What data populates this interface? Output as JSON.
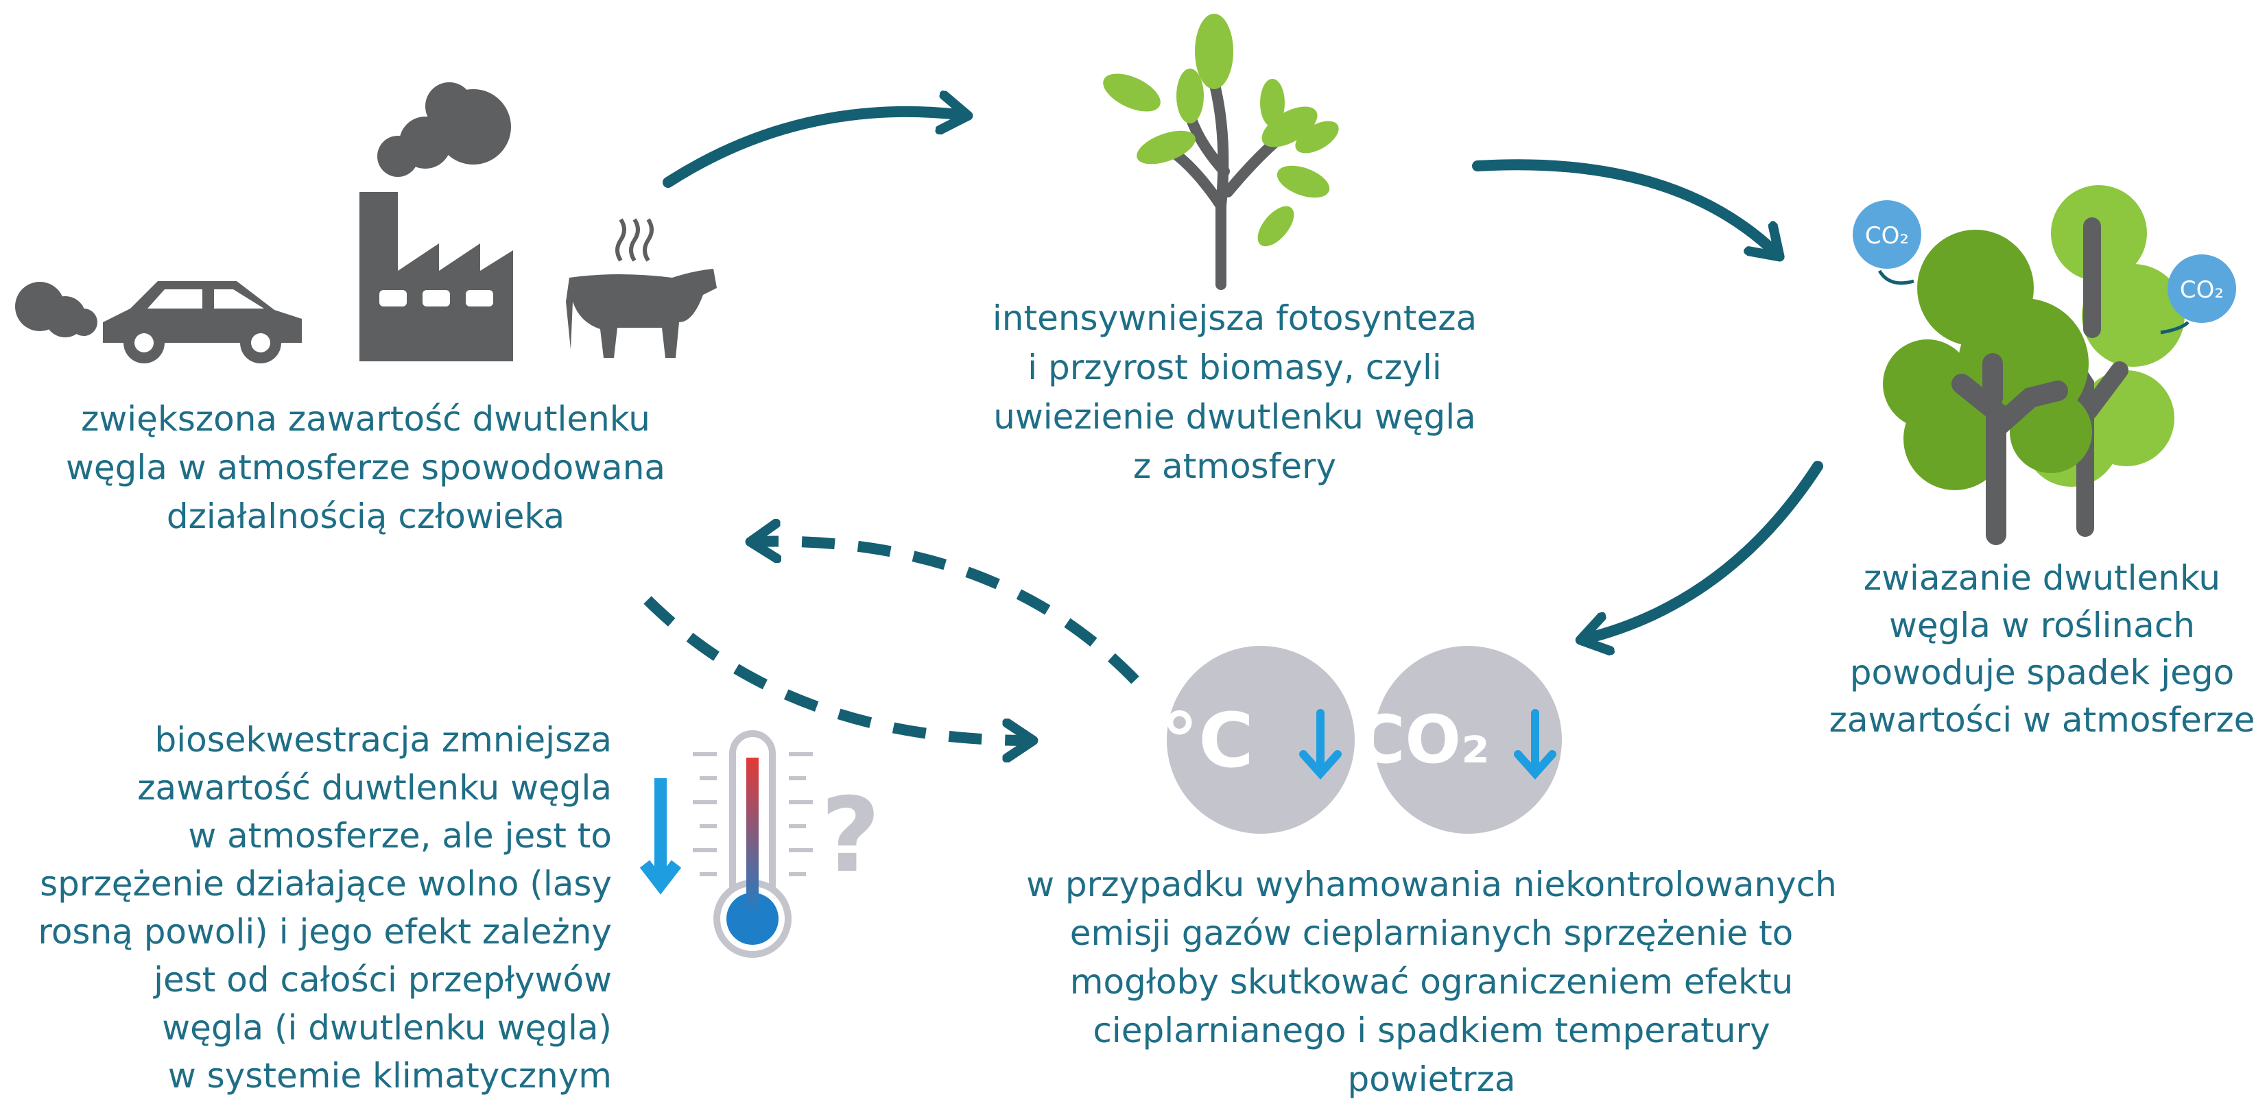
{
  "nodes": [
    {
      "lines": [
        "zwiększona zawartość dwutlenku",
        "węgla w atmosferze spowodowana",
        "działalnością człowieka"
      ]
    },
    {
      "lines": [
        "intensywniejsza fotosynteza",
        "i przyrost biomasy, czyli",
        "uwiezienie dwutlenku węgla",
        "z atmosfery"
      ]
    },
    {
      "lines": [
        "zwiazanie dwutlenku",
        "węgla w roślinach",
        "powoduje spadek jego",
        "zawartości w atmosferze"
      ]
    },
    {
      "lines": [
        "biosekwestracja zmniejsza",
        "zawartość duwtlenku węgla",
        "w atmosferze, ale jest to",
        "sprzężenie działające wolno (lasy",
        "rosną powoli) i jego efekt zależny",
        "jest od całości przepływów",
        "węgla (i dwutlenku węgla)",
        "w systemie klimatycznym"
      ]
    },
    {
      "lines": [
        "w przypadku wyhamowania niekontrolowanych",
        "emisji gazów cieplarnianych sprzężenie to",
        "mogłoby skutkować ograniczeniem efektu",
        "cieplarnianego i spadkiem temperatury",
        "powietrza"
      ]
    }
  ],
  "badges": [
    "°C",
    "CO₂"
  ],
  "bubbles": [
    "CO₂",
    "CO₂"
  ],
  "question": "?"
}
